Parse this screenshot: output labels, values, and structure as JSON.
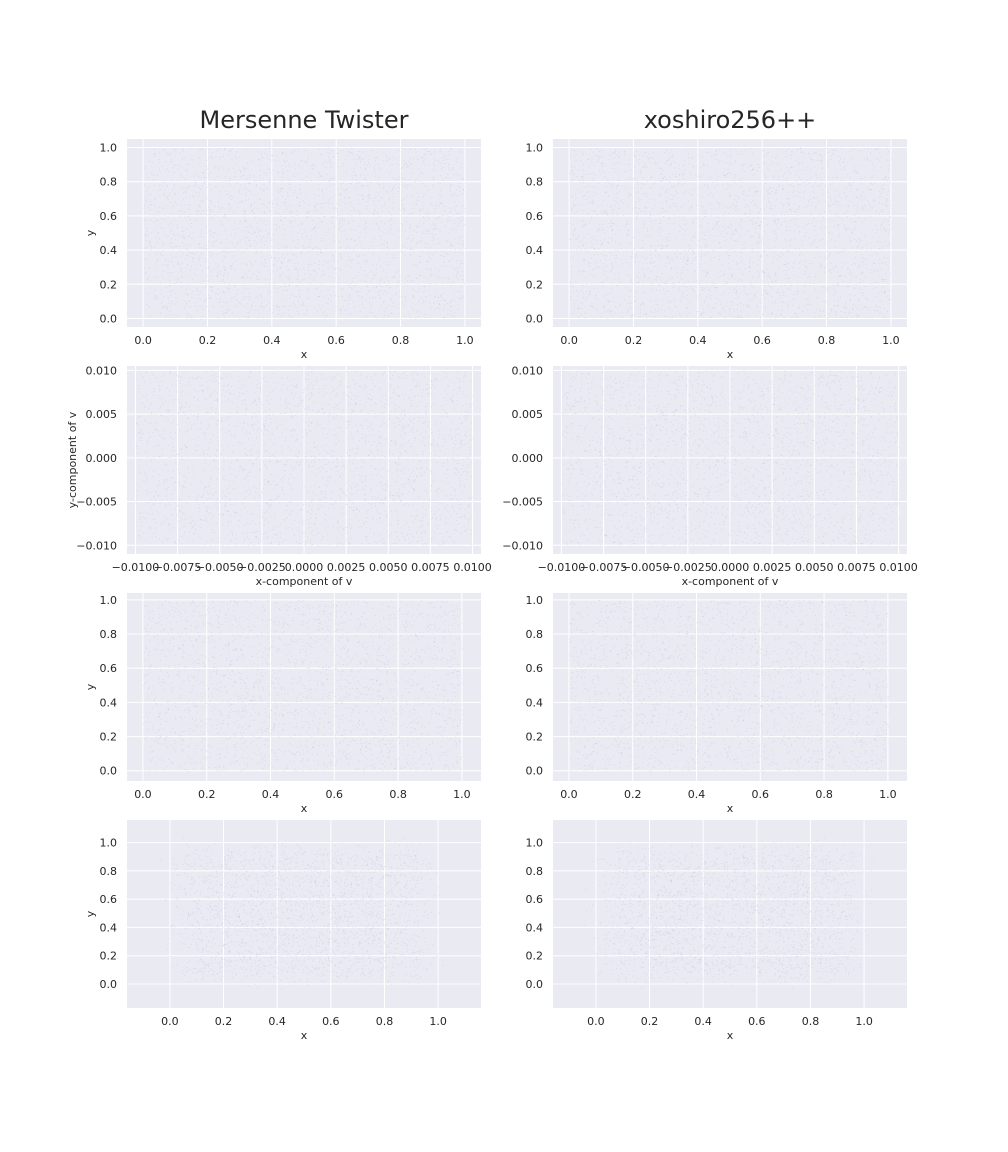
{
  "column_titles": [
    "Mersenne Twister",
    "xoshiro256++"
  ],
  "colors": {
    "axes_bg": "#eaeaf2",
    "grid": "#ffffff",
    "point": "#9aa4d6",
    "text": "#262626"
  },
  "chart_data": [
    {
      "type": "scatter",
      "generator": "Mersenne Twister",
      "row": 1,
      "xlabel": "x",
      "ylabel": "y",
      "xlim": [
        -0.05,
        1.05
      ],
      "ylim": [
        -0.05,
        1.05
      ],
      "xticks": [
        0.0,
        0.2,
        0.4,
        0.6,
        0.8,
        1.0
      ],
      "yticks": [
        0.0,
        0.2,
        0.4,
        0.6,
        0.8,
        1.0
      ],
      "xtick_labels": [
        "0.0",
        "0.2",
        "0.4",
        "0.6",
        "0.8",
        "1.0"
      ],
      "ytick_labels": [
        "0.0",
        "0.2",
        "0.4",
        "0.6",
        "0.8",
        "1.0"
      ],
      "distribution": {
        "kind": "uniform",
        "x_range": [
          0,
          1
        ],
        "y_range": [
          0,
          1
        ]
      },
      "grid": true
    },
    {
      "type": "scatter",
      "generator": "xoshiro256++",
      "row": 1,
      "xlabel": "x",
      "ylabel": "",
      "xlim": [
        -0.05,
        1.05
      ],
      "ylim": [
        -0.05,
        1.05
      ],
      "xticks": [
        0.0,
        0.2,
        0.4,
        0.6,
        0.8,
        1.0
      ],
      "yticks": [
        0.0,
        0.2,
        0.4,
        0.6,
        0.8,
        1.0
      ],
      "xtick_labels": [
        "0.0",
        "0.2",
        "0.4",
        "0.6",
        "0.8",
        "1.0"
      ],
      "ytick_labels": [
        "0.0",
        "0.2",
        "0.4",
        "0.6",
        "0.8",
        "1.0"
      ],
      "distribution": {
        "kind": "uniform",
        "x_range": [
          0,
          1
        ],
        "y_range": [
          0,
          1
        ]
      },
      "grid": true
    },
    {
      "type": "scatter",
      "generator": "Mersenne Twister",
      "row": 2,
      "xlabel": "x-component of v",
      "ylabel": "y-component of v",
      "xlim": [
        -0.0105,
        0.0105
      ],
      "ylim": [
        -0.011,
        0.0105
      ],
      "xticks": [
        -0.01,
        -0.0075,
        -0.005,
        -0.0025,
        0.0,
        0.0025,
        0.005,
        0.0075,
        0.01
      ],
      "yticks": [
        -0.01,
        -0.005,
        0.0,
        0.005,
        0.01
      ],
      "xtick_labels": [
        "−0.0100",
        "−0.0075",
        "−0.0050",
        "−0.0025",
        "0.0000",
        "0.0025",
        "0.0050",
        "0.0075",
        "0.0100"
      ],
      "ytick_labels": [
        "−0.010",
        "−0.005",
        "0.000",
        "0.005",
        "0.010"
      ],
      "distribution": {
        "kind": "uniform",
        "x_range": [
          -0.01,
          0.01
        ],
        "y_range": [
          -0.01,
          0.01
        ]
      },
      "grid": true
    },
    {
      "type": "scatter",
      "generator": "xoshiro256++",
      "row": 2,
      "xlabel": "x-component of v",
      "ylabel": "",
      "xlim": [
        -0.0105,
        0.0105
      ],
      "ylim": [
        -0.011,
        0.0105
      ],
      "xticks": [
        -0.01,
        -0.0075,
        -0.005,
        -0.0025,
        0.0,
        0.0025,
        0.005,
        0.0075,
        0.01
      ],
      "yticks": [
        -0.01,
        -0.005,
        0.0,
        0.005,
        0.01
      ],
      "xtick_labels": [
        "−0.0100",
        "−0.0075",
        "−0.0050",
        "−0.0025",
        "0.0000",
        "0.0025",
        "0.0050",
        "0.0075",
        "0.0100"
      ],
      "ytick_labels": [
        "−0.010",
        "−0.005",
        "0.000",
        "0.005",
        "0.010"
      ],
      "distribution": {
        "kind": "uniform",
        "x_range": [
          -0.01,
          0.01
        ],
        "y_range": [
          -0.01,
          0.01
        ]
      },
      "grid": true
    },
    {
      "type": "scatter",
      "generator": "Mersenne Twister",
      "row": 3,
      "xlabel": "x",
      "ylabel": "y",
      "xlim": [
        -0.05,
        1.06
      ],
      "ylim": [
        -0.06,
        1.04
      ],
      "xticks": [
        0.0,
        0.2,
        0.4,
        0.6,
        0.8,
        1.0
      ],
      "yticks": [
        0.0,
        0.2,
        0.4,
        0.6,
        0.8,
        1.0
      ],
      "xtick_labels": [
        "0.0",
        "0.2",
        "0.4",
        "0.6",
        "0.8",
        "1.0"
      ],
      "ytick_labels": [
        "0.0",
        "0.2",
        "0.4",
        "0.6",
        "0.8",
        "1.0"
      ],
      "distribution": {
        "kind": "uniform",
        "x_range": [
          0,
          1
        ],
        "y_range": [
          0,
          1
        ]
      },
      "grid": true
    },
    {
      "type": "scatter",
      "generator": "xoshiro256++",
      "row": 3,
      "xlabel": "x",
      "ylabel": "",
      "xlim": [
        -0.05,
        1.06
      ],
      "ylim": [
        -0.06,
        1.04
      ],
      "xticks": [
        0.0,
        0.2,
        0.4,
        0.6,
        0.8,
        1.0
      ],
      "yticks": [
        0.0,
        0.2,
        0.4,
        0.6,
        0.8,
        1.0
      ],
      "xtick_labels": [
        "0.0",
        "0.2",
        "0.4",
        "0.6",
        "0.8",
        "1.0"
      ],
      "ytick_labels": [
        "0.0",
        "0.2",
        "0.4",
        "0.6",
        "0.8",
        "1.0"
      ],
      "distribution": {
        "kind": "uniform",
        "x_range": [
          0,
          1
        ],
        "y_range": [
          0,
          1
        ]
      },
      "grid": true
    },
    {
      "type": "scatter",
      "generator": "Mersenne Twister",
      "row": 4,
      "xlabel": "x",
      "ylabel": "y",
      "xlim": [
        -0.16,
        1.16
      ],
      "ylim": [
        -0.17,
        1.16
      ],
      "xticks": [
        0.0,
        0.2,
        0.4,
        0.6,
        0.8,
        1.0
      ],
      "yticks": [
        0.0,
        0.2,
        0.4,
        0.6,
        0.8,
        1.0
      ],
      "xtick_labels": [
        "0.0",
        "0.2",
        "0.4",
        "0.6",
        "0.8",
        "1.0"
      ],
      "ytick_labels": [
        "0.0",
        "0.2",
        "0.4",
        "0.6",
        "0.8",
        "1.0"
      ],
      "distribution": {
        "kind": "uniform-blurred",
        "x_range": [
          -0.1,
          1.1
        ],
        "y_range": [
          -0.1,
          1.1
        ]
      },
      "grid": true
    },
    {
      "type": "scatter",
      "generator": "xoshiro256++",
      "row": 4,
      "xlabel": "x",
      "ylabel": "",
      "xlim": [
        -0.16,
        1.16
      ],
      "ylim": [
        -0.17,
        1.16
      ],
      "xticks": [
        0.0,
        0.2,
        0.4,
        0.6,
        0.8,
        1.0
      ],
      "yticks": [
        0.0,
        0.2,
        0.4,
        0.6,
        0.8,
        1.0
      ],
      "xtick_labels": [
        "0.0",
        "0.2",
        "0.4",
        "0.6",
        "0.8",
        "1.0"
      ],
      "ytick_labels": [
        "0.0",
        "0.2",
        "0.4",
        "0.6",
        "0.8",
        "1.0"
      ],
      "distribution": {
        "kind": "uniform-blurred",
        "x_range": [
          -0.1,
          1.1
        ],
        "y_range": [
          -0.1,
          1.1
        ]
      },
      "grid": true
    }
  ]
}
